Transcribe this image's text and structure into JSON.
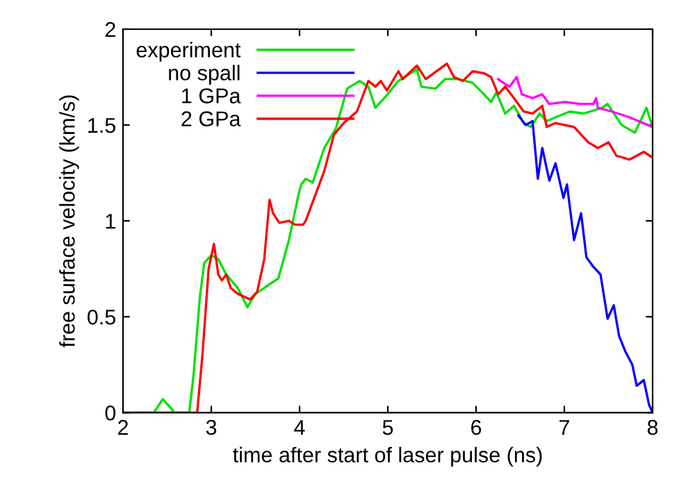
{
  "chart_data": {
    "type": "line",
    "xlabel": "time after start of laser pulse (ns)",
    "ylabel": "free surface velocity (km/s)",
    "xlim": [
      2,
      8
    ],
    "ylim": [
      0,
      2
    ],
    "xticks": [
      2,
      3,
      4,
      5,
      6,
      7,
      8
    ],
    "yticks": [
      0,
      0.5,
      1,
      1.5,
      2
    ],
    "grid": false,
    "legend": "top left",
    "line_style": "solid",
    "marker": "none",
    "series": [
      {
        "name": "experiment",
        "color": "#00e000",
        "x": [
          2,
          2.35,
          2.45,
          2.55,
          2.58,
          2.75,
          2.8,
          2.87,
          2.92,
          3.0,
          3.08,
          3.17,
          3.3,
          3.41,
          3.5,
          3.6,
          3.66,
          3.76,
          3.88,
          3.99,
          4.02,
          4.07,
          4.15,
          4.28,
          4.41,
          4.54,
          4.68,
          4.78,
          4.86,
          4.96,
          5.12,
          5.33,
          5.38,
          5.54,
          5.65,
          5.8,
          5.96,
          6.07,
          6.17,
          6.23,
          6.33,
          6.43,
          6.54,
          6.62,
          6.72,
          6.8,
          6.9,
          7.06,
          7.22,
          7.43,
          7.49,
          7.65,
          7.8,
          7.93,
          8.0
        ],
        "values": [
          0,
          0,
          0.07,
          0.02,
          0,
          0,
          0.2,
          0.6,
          0.78,
          0.82,
          0.8,
          0.72,
          0.65,
          0.55,
          0.62,
          0.65,
          0.67,
          0.7,
          0.9,
          1.14,
          1.19,
          1.22,
          1.2,
          1.38,
          1.48,
          1.69,
          1.73,
          1.7,
          1.59,
          1.64,
          1.73,
          1.79,
          1.7,
          1.69,
          1.74,
          1.74,
          1.72,
          1.67,
          1.62,
          1.67,
          1.56,
          1.6,
          1.51,
          1.49,
          1.56,
          1.52,
          1.54,
          1.57,
          1.56,
          1.59,
          1.61,
          1.5,
          1.46,
          1.59,
          1.49
        ]
      },
      {
        "name": "no spall",
        "color": "#0000ff",
        "x": [
          6.48,
          6.56,
          6.64,
          6.7,
          6.75,
          6.83,
          6.9,
          6.99,
          7.03,
          7.11,
          7.19,
          7.25,
          7.33,
          7.41,
          7.49,
          7.56,
          7.62,
          7.69,
          7.77,
          7.82,
          7.9,
          7.96,
          8.0
        ],
        "values": [
          1.55,
          1.5,
          1.52,
          1.22,
          1.38,
          1.21,
          1.3,
          1.12,
          1.19,
          0.9,
          1.04,
          0.81,
          0.76,
          0.72,
          0.49,
          0.56,
          0.4,
          0.32,
          0.25,
          0.14,
          0.17,
          0.04,
          0.0
        ]
      },
      {
        "name": "1 GPa",
        "color": "#ff00ff",
        "x": [
          6.25,
          6.31,
          6.38,
          6.46,
          6.52,
          6.64,
          6.75,
          6.83,
          7.01,
          7.17,
          7.33,
          7.36,
          7.38,
          7.54,
          7.74,
          8.0
        ],
        "values": [
          1.74,
          1.72,
          1.7,
          1.75,
          1.66,
          1.64,
          1.66,
          1.61,
          1.62,
          1.61,
          1.61,
          1.64,
          1.59,
          1.57,
          1.54,
          1.49
        ]
      },
      {
        "name": "2 GPa",
        "color": "#ff0000",
        "x": [
          2,
          2.84,
          2.9,
          2.97,
          3.03,
          3.08,
          3.12,
          3.17,
          3.22,
          3.3,
          3.44,
          3.52,
          3.6,
          3.66,
          3.7,
          3.77,
          3.88,
          3.95,
          4.04,
          4.07,
          4.28,
          4.39,
          4.5,
          4.65,
          4.78,
          4.86,
          4.92,
          4.99,
          5.12,
          5.17,
          5.33,
          5.43,
          5.67,
          5.75,
          5.85,
          5.96,
          6.09,
          6.17,
          6.25,
          6.33,
          6.43,
          6.54,
          6.64,
          6.75,
          6.8,
          6.9,
          7.11,
          7.27,
          7.38,
          7.5,
          7.59,
          7.74,
          7.9,
          8.0
        ],
        "values": [
          0,
          0,
          0.3,
          0.75,
          0.88,
          0.72,
          0.69,
          0.72,
          0.65,
          0.62,
          0.59,
          0.63,
          0.8,
          1.11,
          1.04,
          0.99,
          1.0,
          0.98,
          0.98,
          1.0,
          1.26,
          1.45,
          1.51,
          1.57,
          1.73,
          1.7,
          1.73,
          1.68,
          1.78,
          1.74,
          1.81,
          1.74,
          1.82,
          1.75,
          1.73,
          1.78,
          1.77,
          1.75,
          1.66,
          1.7,
          1.64,
          1.57,
          1.56,
          1.6,
          1.49,
          1.51,
          1.49,
          1.41,
          1.38,
          1.41,
          1.34,
          1.32,
          1.36,
          1.33
        ]
      }
    ]
  }
}
